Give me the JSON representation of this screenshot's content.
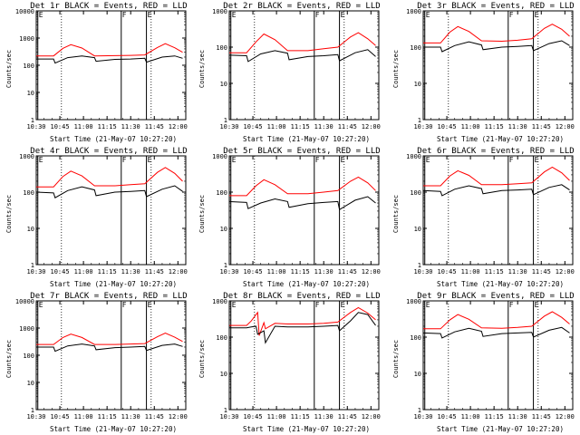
{
  "chart_data": [
    {
      "type": "line",
      "title": "Det 1r BLACK = Events, RED = LLD",
      "ylabel": "Counts/sec",
      "xlabel": "Start Time (21-May-07 10:27:20)",
      "y_scale": "log",
      "ylim": [
        1,
        10000
      ],
      "xlim": [
        "10:30",
        "12:05"
      ],
      "x_ticks": [
        "10:30",
        "10:45",
        "11:00",
        "11:15",
        "11:30",
        "11:45",
        "12:00"
      ],
      "y_ticks": [
        "1",
        "10",
        "100",
        "1000",
        "10000"
      ],
      "markers": [
        {
          "label": "E",
          "x": "10:31"
        },
        {
          "label": "F",
          "x": "11:24"
        },
        {
          "label": "E",
          "x": "11:40"
        }
      ],
      "series": [
        {
          "name": "Events",
          "color": "#000000",
          "x": [
            "10:30",
            "10:41",
            "10:42",
            "10:50",
            "10:59",
            "11:07",
            "11:08",
            "11:20",
            "11:30",
            "11:39",
            "11:40",
            "11:50",
            "11:58",
            "12:03"
          ],
          "values": [
            170,
            170,
            120,
            190,
            220,
            190,
            140,
            165,
            170,
            180,
            130,
            200,
            220,
            180
          ]
        },
        {
          "name": "LLD",
          "color": "#ff0000",
          "x": [
            "10:30",
            "10:41",
            "10:47",
            "10:52",
            "10:59",
            "11:07",
            "11:20",
            "11:30",
            "11:39",
            "11:47",
            "11:52",
            "11:58",
            "12:03"
          ],
          "values": [
            220,
            220,
            420,
            570,
            430,
            220,
            225,
            230,
            240,
            450,
            620,
            440,
            300
          ]
        }
      ]
    },
    {
      "type": "line",
      "title": "Det 2r BLACK = Events, RED = LLD",
      "ylabel": "Counts/sec",
      "xlabel": "Start Time (21-May-07 10:27:20)",
      "y_scale": "log",
      "ylim": [
        1,
        1000
      ],
      "xlim": [
        "10:30",
        "12:05"
      ],
      "x_ticks": [
        "10:30",
        "10:45",
        "11:00",
        "11:15",
        "11:30",
        "11:45",
        "12:00"
      ],
      "y_ticks": [
        "1",
        "10",
        "100",
        "1000"
      ],
      "markers": [
        {
          "label": "E",
          "x": "10:31"
        },
        {
          "label": "F",
          "x": "11:24"
        },
        {
          "label": "E",
          "x": "11:40"
        }
      ],
      "series": [
        {
          "name": "Events",
          "color": "#000000",
          "x": [
            "10:30",
            "10:41",
            "10:42",
            "10:50",
            "10:59",
            "11:07",
            "11:08",
            "11:20",
            "11:30",
            "11:39",
            "11:40",
            "11:50",
            "11:58",
            "12:03"
          ],
          "values": [
            60,
            58,
            40,
            65,
            80,
            68,
            45,
            55,
            58,
            62,
            42,
            70,
            85,
            55
          ]
        },
        {
          "name": "LLD",
          "color": "#ff0000",
          "x": [
            "10:30",
            "10:41",
            "10:47",
            "10:52",
            "10:59",
            "11:07",
            "11:20",
            "11:30",
            "11:39",
            "11:47",
            "11:52",
            "11:58",
            "12:03"
          ],
          "values": [
            70,
            70,
            140,
            230,
            160,
            80,
            80,
            90,
            100,
            190,
            250,
            170,
            110
          ]
        }
      ]
    },
    {
      "type": "line",
      "title": "Det 3r BLACK = Events, RED = LLD",
      "ylabel": "Counts/sec",
      "xlabel": "Start Time (21-May-07 10:27:20)",
      "y_scale": "log",
      "ylim": [
        1,
        1000
      ],
      "xlim": [
        "10:30",
        "12:05"
      ],
      "x_ticks": [
        "10:30",
        "10:45",
        "11:00",
        "11:15",
        "11:30",
        "11:45",
        "12:00"
      ],
      "y_ticks": [
        "1",
        "10",
        "100",
        "1000"
      ],
      "markers": [
        {
          "label": "E",
          "x": "10:31"
        },
        {
          "label": "F",
          "x": "11:24"
        },
        {
          "label": "E",
          "x": "11:40"
        }
      ],
      "series": [
        {
          "name": "Events",
          "color": "#000000",
          "x": [
            "10:30",
            "10:41",
            "10:42",
            "10:50",
            "10:59",
            "11:07",
            "11:08",
            "11:20",
            "11:30",
            "11:39",
            "11:40",
            "11:50",
            "11:58",
            "12:03"
          ],
          "values": [
            100,
            100,
            75,
            110,
            140,
            115,
            85,
            100,
            105,
            110,
            80,
            125,
            150,
            110
          ]
        },
        {
          "name": "LLD",
          "color": "#ff0000",
          "x": [
            "10:30",
            "10:41",
            "10:47",
            "10:52",
            "10:59",
            "11:07",
            "11:20",
            "11:30",
            "11:39",
            "11:47",
            "11:52",
            "11:58",
            "12:03"
          ],
          "values": [
            130,
            130,
            260,
            370,
            270,
            150,
            145,
            155,
            170,
            330,
            430,
            310,
            200
          ]
        }
      ]
    },
    {
      "type": "line",
      "title": "Det 4r BLACK = Events, RED = LLD",
      "ylabel": "Counts/sec",
      "xlabel": "Start Time (21-May-07 10:27:20)",
      "y_scale": "log",
      "ylim": [
        1,
        1000
      ],
      "xlim": [
        "10:30",
        "12:05"
      ],
      "x_ticks": [
        "10:30",
        "10:45",
        "11:00",
        "11:15",
        "11:30",
        "11:45",
        "12:00"
      ],
      "y_ticks": [
        "1",
        "10",
        "100",
        "1000"
      ],
      "markers": [
        {
          "label": "E",
          "x": "10:31"
        },
        {
          "label": "F",
          "x": "11:24"
        },
        {
          "label": "E",
          "x": "11:40"
        }
      ],
      "series": [
        {
          "name": "Events",
          "color": "#000000",
          "x": [
            "10:30",
            "10:41",
            "10:42",
            "10:50",
            "10:59",
            "11:07",
            "11:08",
            "11:20",
            "11:30",
            "11:39",
            "11:40",
            "11:50",
            "11:58",
            "12:03"
          ],
          "values": [
            100,
            95,
            70,
            110,
            140,
            115,
            80,
            100,
            105,
            110,
            75,
            120,
            150,
            105
          ]
        },
        {
          "name": "LLD",
          "color": "#ff0000",
          "x": [
            "10:30",
            "10:41",
            "10:47",
            "10:52",
            "10:59",
            "11:07",
            "11:20",
            "11:30",
            "11:39",
            "11:47",
            "11:52",
            "11:58",
            "12:03"
          ],
          "values": [
            140,
            140,
            270,
            380,
            280,
            150,
            150,
            160,
            170,
            350,
            480,
            330,
            200
          ]
        }
      ]
    },
    {
      "type": "line",
      "title": "Det 5r BLACK = Events, RED = LLD",
      "ylabel": "Counts/sec",
      "xlabel": "Start Time (21-May-07 10:27:20)",
      "y_scale": "log",
      "ylim": [
        1,
        1000
      ],
      "xlim": [
        "10:30",
        "12:05"
      ],
      "x_ticks": [
        "10:30",
        "10:45",
        "11:00",
        "11:15",
        "11:30",
        "11:45",
        "12:00"
      ],
      "y_ticks": [
        "1",
        "10",
        "100",
        "1000"
      ],
      "markers": [
        {
          "label": "E",
          "x": "10:31"
        },
        {
          "label": "F",
          "x": "11:24"
        },
        {
          "label": "E",
          "x": "11:40"
        }
      ],
      "series": [
        {
          "name": "Events",
          "color": "#000000",
          "x": [
            "10:30",
            "10:41",
            "10:42",
            "10:50",
            "10:59",
            "11:07",
            "11:08",
            "11:20",
            "11:30",
            "11:39",
            "11:40",
            "11:50",
            "11:58",
            "12:03"
          ],
          "values": [
            55,
            52,
            35,
            50,
            65,
            55,
            38,
            48,
            52,
            55,
            33,
            60,
            75,
            50
          ]
        },
        {
          "name": "LLD",
          "color": "#ff0000",
          "x": [
            "10:30",
            "10:41",
            "10:47",
            "10:52",
            "10:59",
            "11:07",
            "11:20",
            "11:30",
            "11:39",
            "11:47",
            "11:52",
            "11:58",
            "12:03"
          ],
          "values": [
            80,
            80,
            150,
            220,
            160,
            90,
            90,
            100,
            110,
            200,
            260,
            180,
            110
          ]
        }
      ]
    },
    {
      "type": "line",
      "title": "Det 6r BLACK = Events, RED = LLD",
      "ylabel": "Counts/sec",
      "xlabel": "Start Time (21-May-07 10:27:20)",
      "y_scale": "log",
      "ylim": [
        1,
        1000
      ],
      "xlim": [
        "10:30",
        "12:05"
      ],
      "x_ticks": [
        "10:30",
        "10:45",
        "11:00",
        "11:15",
        "11:30",
        "11:45",
        "12:00"
      ],
      "y_ticks": [
        "1",
        "10",
        "100",
        "1000"
      ],
      "markers": [
        {
          "label": "E",
          "x": "10:31"
        },
        {
          "label": "F",
          "x": "11:24"
        },
        {
          "label": "E",
          "x": "11:40"
        }
      ],
      "series": [
        {
          "name": "Events",
          "color": "#000000",
          "x": [
            "10:30",
            "10:41",
            "10:42",
            "10:50",
            "10:59",
            "11:07",
            "11:08",
            "11:20",
            "11:30",
            "11:39",
            "11:40",
            "11:50",
            "11:58",
            "12:03"
          ],
          "values": [
            110,
            105,
            80,
            120,
            150,
            125,
            90,
            110,
            115,
            120,
            85,
            135,
            160,
            115
          ]
        },
        {
          "name": "LLD",
          "color": "#ff0000",
          "x": [
            "10:30",
            "10:41",
            "10:47",
            "10:52",
            "10:59",
            "11:07",
            "11:20",
            "11:30",
            "11:39",
            "11:47",
            "11:52",
            "11:58",
            "12:03"
          ],
          "values": [
            150,
            150,
            280,
            390,
            290,
            160,
            160,
            170,
            180,
            360,
            490,
            340,
            210
          ]
        }
      ]
    },
    {
      "type": "line",
      "title": "Det 7r BLACK = Events, RED = LLD",
      "ylabel": "Counts/sec",
      "xlabel": "Start Time (21-May-07 10:27:20)",
      "y_scale": "log",
      "ylim": [
        1,
        10000
      ],
      "xlim": [
        "10:30",
        "12:05"
      ],
      "x_ticks": [
        "10:30",
        "10:45",
        "11:00",
        "11:15",
        "11:30",
        "11:45",
        "12:00"
      ],
      "y_ticks": [
        "1",
        "10",
        "100",
        "1000",
        "10000"
      ],
      "markers": [
        {
          "label": "E",
          "x": "10:31"
        },
        {
          "label": "F",
          "x": "11:24"
        },
        {
          "label": "E",
          "x": "11:40"
        }
      ],
      "series": [
        {
          "name": "Events",
          "color": "#000000",
          "x": [
            "10:30",
            "10:41",
            "10:42",
            "10:50",
            "10:59",
            "11:07",
            "11:08",
            "11:20",
            "11:30",
            "11:39",
            "11:40",
            "11:50",
            "11:58",
            "12:03"
          ],
          "values": [
            200,
            200,
            140,
            220,
            260,
            220,
            160,
            190,
            200,
            210,
            150,
            230,
            260,
            210
          ]
        },
        {
          "name": "LLD",
          "color": "#ff0000",
          "x": [
            "10:30",
            "10:41",
            "10:47",
            "10:52",
            "10:59",
            "11:07",
            "11:20",
            "11:30",
            "11:39",
            "11:47",
            "11:52",
            "11:58",
            "12:03"
          ],
          "values": [
            250,
            250,
            450,
            600,
            450,
            250,
            250,
            260,
            270,
            480,
            650,
            460,
            320
          ]
        }
      ]
    },
    {
      "type": "line",
      "title": "Det 8r BLACK = Events, RED = LLD",
      "ylabel": "Counts/sec",
      "xlabel": "Start Time (21-May-07 10:27:20)",
      "y_scale": "log",
      "ylim": [
        1,
        1000
      ],
      "xlim": [
        "10:30",
        "12:05"
      ],
      "x_ticks": [
        "10:30",
        "10:45",
        "11:00",
        "11:15",
        "11:30",
        "11:45",
        "12:00"
      ],
      "y_ticks": [
        "1",
        "10",
        "100",
        "1000"
      ],
      "markers": [
        {
          "label": "E",
          "x": "10:31"
        },
        {
          "label": "F",
          "x": "11:24"
        },
        {
          "label": "E",
          "x": "11:40"
        }
      ],
      "series": [
        {
          "name": "Events",
          "color": "#000000",
          "x": [
            "10:30",
            "10:41",
            "10:44",
            "10:47",
            "10:48",
            "10:52",
            "10:53",
            "10:59",
            "11:07",
            "11:20",
            "11:30",
            "11:39",
            "11:40",
            "11:47",
            "11:52",
            "11:58",
            "12:03"
          ],
          "values": [
            180,
            180,
            190,
            200,
            120,
            150,
            70,
            200,
            190,
            190,
            200,
            210,
            150,
            280,
            480,
            420,
            210
          ]
        },
        {
          "name": "LLD",
          "color": "#ff0000",
          "x": [
            "10:30",
            "10:41",
            "10:44",
            "10:48",
            "10:49",
            "10:52",
            "10:53",
            "10:59",
            "11:07",
            "11:20",
            "11:30",
            "11:39",
            "11:47",
            "11:52",
            "11:58",
            "12:03"
          ],
          "values": [
            210,
            210,
            280,
            480,
            110,
            250,
            170,
            240,
            230,
            230,
            240,
            260,
            480,
            650,
            460,
            300
          ]
        }
      ]
    },
    {
      "type": "line",
      "title": "Det 9r BLACK = Events, RED = LLD",
      "ylabel": "Counts/sec",
      "xlabel": "Start Time (21-May-07 10:27:20)",
      "y_scale": "log",
      "ylim": [
        1,
        1000
      ],
      "xlim": [
        "10:30",
        "12:05"
      ],
      "x_ticks": [
        "10:30",
        "10:45",
        "11:00",
        "11:15",
        "11:30",
        "11:45",
        "12:00"
      ],
      "y_ticks": [
        "1",
        "10",
        "100",
        "1000"
      ],
      "markers": [
        {
          "label": "E",
          "x": "10:31"
        },
        {
          "label": "F",
          "x": "11:24"
        },
        {
          "label": "E",
          "x": "11:40"
        }
      ],
      "series": [
        {
          "name": "Events",
          "color": "#000000",
          "x": [
            "10:30",
            "10:41",
            "10:42",
            "10:50",
            "10:59",
            "11:07",
            "11:08",
            "11:20",
            "11:30",
            "11:39",
            "11:40",
            "11:50",
            "11:58",
            "12:03"
          ],
          "values": [
            130,
            125,
            95,
            140,
            175,
            145,
            105,
            125,
            130,
            135,
            100,
            155,
            185,
            130
          ]
        },
        {
          "name": "LLD",
          "color": "#ff0000",
          "x": [
            "10:30",
            "10:41",
            "10:47",
            "10:52",
            "10:59",
            "11:07",
            "11:20",
            "11:30",
            "11:39",
            "11:47",
            "11:52",
            "11:58",
            "12:03"
          ],
          "values": [
            170,
            170,
            300,
            420,
            310,
            180,
            175,
            185,
            200,
            380,
            500,
            350,
            230
          ]
        }
      ]
    }
  ]
}
